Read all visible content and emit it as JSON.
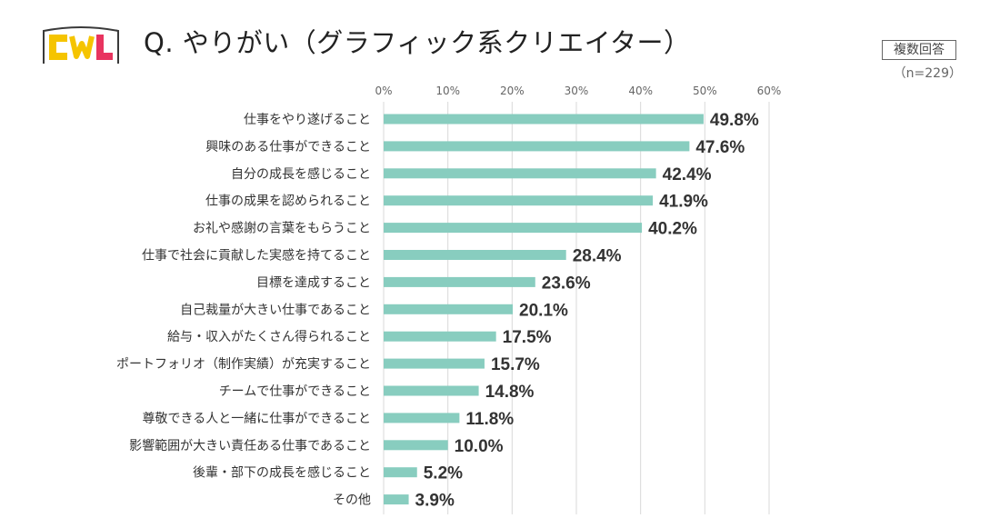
{
  "header": {
    "logo_text": "CWL",
    "title": "Q. やりがい（グラフィック系クリエイター）",
    "badge": "複数回答",
    "sample_size": "（n=229）"
  },
  "colors": {
    "bar": "#88cdbf",
    "grid": "#d9d9d9",
    "logo_yellow": "#f5c400",
    "logo_pink": "#e8345f",
    "logo_outline": "#3a3a3a"
  },
  "chart_data": {
    "type": "bar",
    "orientation": "horizontal",
    "title": "Q. やりがい（グラフィック系クリエイター）",
    "xlim": [
      0,
      60
    ],
    "x_ticks": [
      "0%",
      "10%",
      "20%",
      "30%",
      "40%",
      "50%",
      "60%"
    ],
    "grid": true,
    "categories": [
      "仕事をやり遂げること",
      "興味のある仕事ができること",
      "自分の成長を感じること",
      "仕事の成果を認められること",
      "お礼や感謝の言葉をもらうこと",
      "仕事で社会に貢献した実感を持てること",
      "目標を達成すること",
      "自己裁量が大きい仕事であること",
      "給与・収入がたくさん得られること",
      "ポートフォリオ（制作実績）が充実すること",
      "チームで仕事ができること",
      "尊敬できる人と一緒に仕事ができること",
      "影響範囲が大きい責任ある仕事であること",
      "後輩・部下の成長を感じること",
      "その他"
    ],
    "values": [
      49.8,
      47.6,
      42.4,
      41.9,
      40.2,
      28.4,
      23.6,
      20.1,
      17.5,
      15.7,
      14.8,
      11.8,
      10.0,
      5.2,
      3.9
    ],
    "value_labels": [
      "49.8%",
      "47.6%",
      "42.4%",
      "41.9%",
      "40.2%",
      "28.4%",
      "23.6%",
      "20.1%",
      "17.5%",
      "15.7%",
      "14.8%",
      "11.8%",
      "10.0%",
      "5.2%",
      "3.9%"
    ]
  }
}
